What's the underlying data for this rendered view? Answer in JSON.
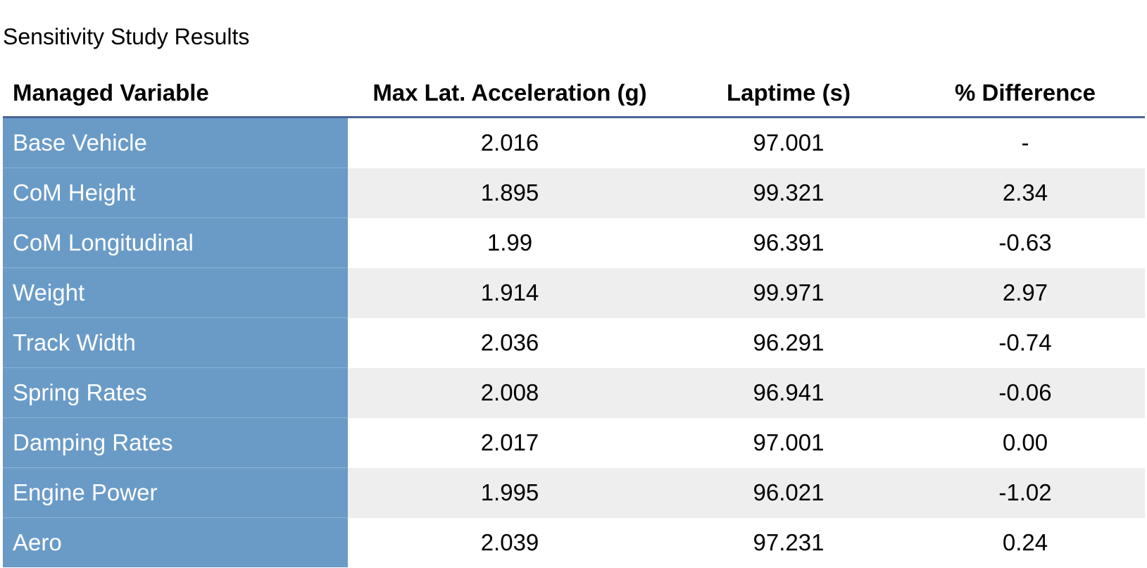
{
  "title": "Sensitivity Study Results",
  "table": {
    "header": [
      "Managed Variable",
      "Max Lat. Acceleration (g)",
      "Laptime (s)",
      "% Difference"
    ],
    "rows": [
      [
        "Base Vehicle",
        "2.016",
        "97.001",
        "-"
      ],
      [
        "CoM Height",
        "1.895",
        "99.321",
        "2.34"
      ],
      [
        "CoM Longitudinal",
        "1.99",
        "96.391",
        "-0.63"
      ],
      [
        "Weight",
        "1.914",
        "99.971",
        "2.97"
      ],
      [
        "Track Width",
        "2.036",
        "96.291",
        "-0.74"
      ],
      [
        "Spring Rates",
        "2.008",
        "96.941",
        "-0.06"
      ],
      [
        "Damping Rates",
        "2.017",
        "97.001",
        "0.00"
      ],
      [
        "Engine Power",
        "1.995",
        "96.021",
        "-1.02"
      ],
      [
        "Aero",
        "2.039",
        "97.231",
        "0.24"
      ]
    ]
  }
}
